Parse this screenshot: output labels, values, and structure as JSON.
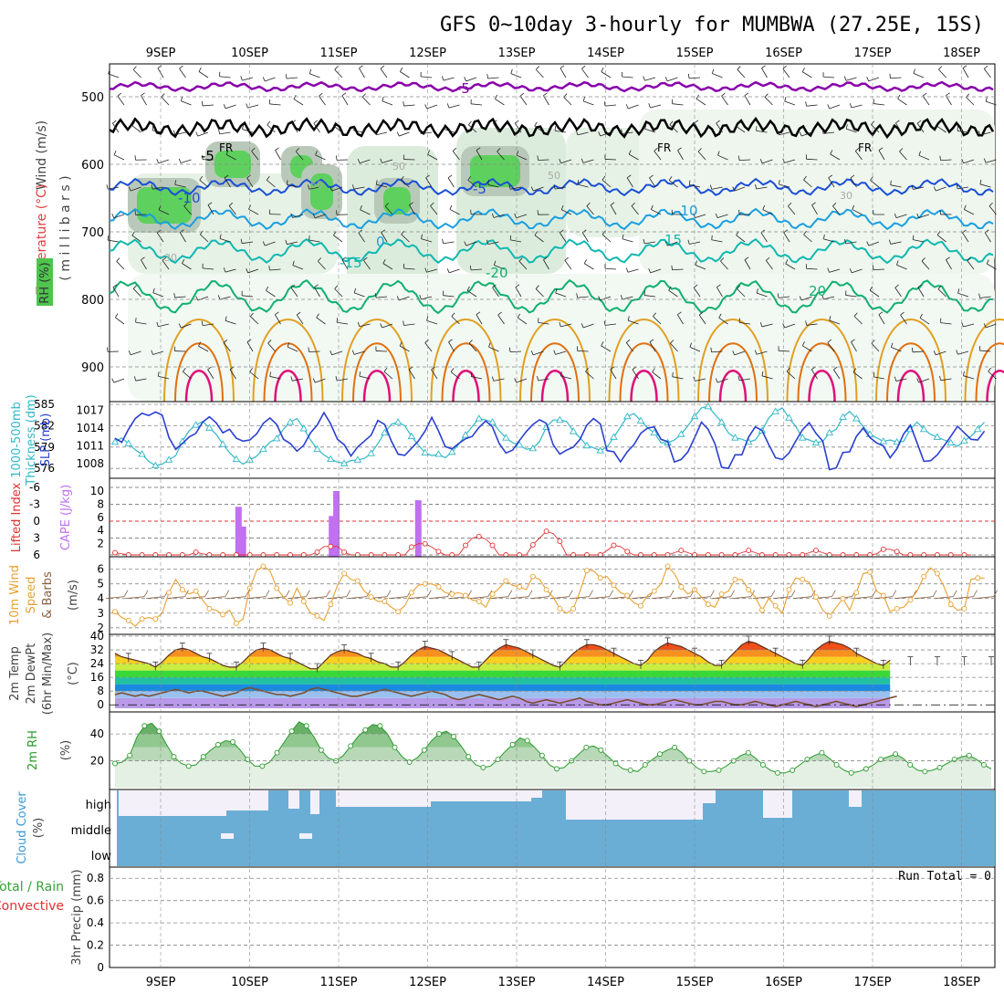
{
  "title": "GFS 0~10day 3-hourly for MUMBWA (27.25E, 15S)",
  "dates": [
    "9SEP",
    "10SEP",
    "11SEP",
    "12SEP",
    "13SEP",
    "14SEP",
    "15SEP",
    "16SEP",
    "17SEP",
    "18SEP"
  ],
  "colors": {
    "purple": "#8800aa",
    "blue": "#1a4fd6",
    "lightblue": "#1a9fe0",
    "teal": "#10b8b0",
    "green": "#10b070",
    "orange": "#e0a020",
    "darkorange": "#e07010",
    "magenta": "#e0107a",
    "rh_fill": "#5ed05e",
    "slp": "#2a3fd0",
    "thick": "#30b8c8",
    "cape": "#c070f0",
    "li": "#e03030",
    "wind": "#e8a030",
    "cloud": "#6aaed6",
    "rh2m": "#2a9a2a"
  },
  "panels": {
    "upper": {
      "labels": {
        "wind": "Wind (m/s)",
        "temp": "Temperature (°C)",
        "rh": "RH (%)",
        "axis": "( m i l l i b a r s )"
      },
      "pressure_ticks": [
        "500",
        "600",
        "700",
        "800",
        "900"
      ],
      "isotherm_labels": [
        "-5",
        "-5",
        "-10",
        "-5",
        "0",
        "-15",
        "-20",
        "-10",
        "15",
        "20"
      ],
      "freezing_labels": [
        "FR",
        "FR",
        "FR"
      ],
      "rh_labels": [
        "30",
        "50",
        "50",
        "50",
        "30"
      ]
    },
    "slp": {
      "left_label": "1000-500mb",
      "left_label2": "Thickness (dm)",
      "right_label": "SLP (mb)",
      "left_ticks": [
        "585",
        "582",
        "579",
        "576"
      ],
      "right_ticks": [
        "1017",
        "1014",
        "1011",
        "1008"
      ]
    },
    "cape": {
      "left_label": "Lifted Index",
      "right_label": "CAPE (J/kg)",
      "left_ticks": [
        "-6",
        "-3",
        "0",
        "3",
        "6"
      ],
      "right_ticks": [
        "10",
        "8",
        "6",
        "4",
        "2"
      ]
    },
    "wind10m": {
      "label1": "10m Wind",
      "label2": "Speed",
      "label3": "& Barbs",
      "unit": "(m/s)",
      "ticks": [
        "6",
        "5",
        "4",
        "3",
        "2"
      ]
    },
    "temp2m": {
      "label1": "2m Temp",
      "label2": "2m DewPt",
      "label3": "(6hr Min/Max)",
      "unit": "(°C)",
      "ticks": [
        "40",
        "32",
        "24",
        "16",
        "8",
        "0"
      ]
    },
    "rh2m": {
      "label": "2m RH",
      "unit": "(%)",
      "ticks": [
        "40",
        "20"
      ]
    },
    "cloud": {
      "label": "Cloud Cover",
      "unit": "(%)",
      "levels": [
        "high",
        "middle",
        "low"
      ]
    },
    "precip": {
      "label1": "Total / Rain",
      "label2": "Convective",
      "label3": "3hr Precip (mm)",
      "ticks": [
        "0.8",
        "0.6",
        "0.4",
        "0.2",
        "0"
      ],
      "run_total": "Run Total = 0"
    }
  },
  "chart_data": [
    {
      "type": "line",
      "title": "1000-500mb Thickness (dm)",
      "ylim": [
        575,
        585
      ],
      "series": [
        {
          "name": "1000-500mb Thickness (dm)",
          "values": [
            579.7,
            580.3,
            579.5,
            578.6,
            578.0,
            577.0,
            576.4,
            576.6,
            577.2,
            577.8,
            579.8,
            581.3,
            582.1,
            582.6,
            581.7,
            580.8,
            579.4,
            578.2,
            577.3,
            576.6,
            577.2,
            577.7,
            578.7,
            579.7,
            580.2,
            581.5,
            582.5,
            583.0,
            581.6,
            580.0,
            578.7,
            577.9,
            577.3,
            576.9,
            576.7,
            577.1,
            577.2,
            577.4,
            578.1,
            579.5,
            581.0,
            582.2,
            582.5,
            582.0,
            580.5,
            579.3,
            578.2,
            577.8,
            578.0,
            577.5,
            578.3,
            579.4,
            580.7,
            581.9,
            583.0,
            582.8,
            582.5,
            581.3,
            580.3,
            579.6,
            579.3,
            578.7,
            578.8,
            579.8,
            581.8,
            582.8,
            582.8,
            582.6,
            581.2,
            580.3,
            579.2,
            578.9,
            578.5,
            579.0,
            580.4,
            581.8,
            583.3,
            583.7,
            582.7,
            581.7,
            581.0,
            579.6,
            579.6,
            580.0,
            580.8,
            582.0,
            583.3,
            584.5,
            584.7,
            583.6,
            582.5,
            581.0,
            580.3,
            580.1,
            579.7,
            580.0,
            581.3,
            583.1,
            584.0,
            584.5,
            583.1,
            581.9,
            580.3,
            580.0,
            579.6,
            579.8,
            581.0,
            581.5,
            583.2,
            584.0,
            583.0,
            581.9,
            580.8,
            580.3,
            579.8,
            580.0,
            579.7,
            579.8,
            581.5,
            582.5,
            581.5,
            580.8,
            580.4,
            580.0,
            579.6,
            579.1,
            579.9,
            580.5,
            581.5,
            582.5
          ]
        }
      ]
    },
    {
      "type": "line",
      "title": "SLP (mb)",
      "ylim": [
        1006,
        1018
      ],
      "series": [
        {
          "name": "SLP (mb)",
          "values": [
            1012.3,
            1011.6,
            1013.8,
            1015.6,
            1016.5,
            1016.1,
            1016.7,
            1016.2,
            1012.4,
            1010.4,
            1011.4,
            1012.5,
            1013.1,
            1015.0,
            1015.9,
            1014.9,
            1013.2,
            1013.8,
            1012.3,
            1011.8,
            1012.0,
            1013.0,
            1014.8,
            1015.7,
            1014.6,
            1012.1,
            1011.4,
            1010.1,
            1011.1,
            1013.2,
            1014.5,
            1016.6,
            1014.7,
            1012.1,
            1011.2,
            1009.3,
            1010.8,
            1011.8,
            1012.8,
            1015.3,
            1014.6,
            1011.8,
            1009.6,
            1009.4,
            1010.6,
            1011.8,
            1013.5,
            1015.8,
            1013.5,
            1010.9,
            1010.5,
            1011.4,
            1012.2,
            1012.6,
            1014.1,
            1015.2,
            1014.2,
            1011.4,
            1009.8,
            1010.3,
            1011.9,
            1013.4,
            1014.6,
            1015.4,
            1014.8,
            1011.2,
            1009.6,
            1010.3,
            1010.8,
            1012.1,
            1014.5,
            1015.6,
            1014.7,
            1010.2,
            1010.0,
            1008.3,
            1010.0,
            1011.2,
            1013.1,
            1014.0,
            1014.2,
            1012.1,
            1011.7,
            1008.3,
            1008.7,
            1010.0,
            1012.4,
            1015.0,
            1013.8,
            1011.4,
            1007.4,
            1007.2,
            1009.5,
            1009.5,
            1012.5,
            1014.2,
            1013.6,
            1011.2,
            1009.0,
            1008.7,
            1009.8,
            1011.8,
            1013.7,
            1014.9,
            1013.1,
            1011.8,
            1007.0,
            1007.3,
            1009.9,
            1010.0,
            1012.6,
            1014.0,
            1012.4,
            1011.5,
            1011.0,
            1009.0,
            1010.5,
            1013.0,
            1014.5,
            1011.5,
            1008.4,
            1008.5,
            1009.5,
            1011.0,
            1012.6,
            1014.3,
            1013.2,
            1012.1,
            1012.0,
            1013.5
          ]
        }
      ]
    },
    {
      "type": "bar",
      "title": "CAPE (J/kg)",
      "x_days": [
        0.9,
        0.95,
        1.95,
        2.0,
        2.92
      ],
      "values": [
        7.6,
        4.6,
        6.2,
        10.0,
        8.6
      ],
      "ylim": [
        0,
        10
      ]
    },
    {
      "type": "line",
      "title": "Lifted Index",
      "ylim": [
        -6,
        6
      ],
      "note_range": "values between about 1 and 6",
      "series": [
        {
          "name": "Lifted Index",
          "values": [
            5.6,
            5.8,
            6,
            6,
            6,
            6,
            6,
            6,
            6,
            6,
            6,
            6,
            5.5,
            5.8,
            6,
            6,
            6,
            6,
            6,
            6,
            6,
            6,
            6,
            6,
            6,
            6,
            6,
            6,
            6,
            6,
            5.5,
            4.5,
            4.5,
            4.5,
            5.5,
            6,
            6,
            6,
            6,
            6,
            6,
            6,
            6,
            6,
            4.6,
            4.0,
            4.0,
            4.6,
            5.4,
            6,
            6,
            6,
            4.3,
            3.0,
            2.7,
            3.2,
            4.3,
            6,
            6,
            6,
            6,
            6,
            4.2,
            3.0,
            1.8,
            2.2,
            3.6,
            6,
            6,
            6,
            6,
            6,
            6,
            5.2,
            4.3,
            4.5,
            5.4,
            6,
            6,
            6,
            6,
            6,
            6,
            5.6,
            5.2,
            5.6,
            6,
            6,
            6,
            6,
            6,
            6,
            6,
            5.6,
            5.2,
            5.6,
            6,
            6,
            6,
            6,
            6,
            6,
            6,
            5.6,
            5.2,
            5.6,
            6,
            6,
            6,
            6,
            6,
            6,
            6,
            5.8,
            5.0,
            5.0,
            5.4,
            6,
            6,
            6,
            6,
            6,
            6,
            6,
            6,
            6,
            6,
            6
          ]
        }
      ]
    },
    {
      "type": "line",
      "title": "10m Wind Speed (m/s)",
      "ylim": [
        1.8,
        6.6
      ],
      "series": [
        {
          "name": "10m Wind Speed",
          "values": [
            3.1,
            2.7,
            2.5,
            2.1,
            2.6,
            2.7,
            2.6,
            3.0,
            4.4,
            5.3,
            4.6,
            4.3,
            4.5,
            3.9,
            3.3,
            3.2,
            2.9,
            3.2,
            2.3,
            2.6,
            4.7,
            5.9,
            6.2,
            5.9,
            4.7,
            4.1,
            3.7,
            4.7,
            3.8,
            3.0,
            2.8,
            2.5,
            3.6,
            4.9,
            5.7,
            5.3,
            5.2,
            4.5,
            4.1,
            3.8,
            3.8,
            3.4,
            3.1,
            3.5,
            4.4,
            4.9,
            5.0,
            5.0,
            4.8,
            4.4,
            4.3,
            4.4,
            4.2,
            3.9,
            3.8,
            3.4,
            4.3,
            4.7,
            5.2,
            4.9,
            4.8,
            4.6,
            5.5,
            5.3,
            4.6,
            4.1,
            3.3,
            3.0,
            3.3,
            4.5,
            5.9,
            5.9,
            5.4,
            5.5,
            4.9,
            4.4,
            4.2,
            3.7,
            3.5,
            4.2,
            4.5,
            5.0,
            6.2,
            5.7,
            4.8,
            4.3,
            4.6,
            4.1,
            3.6,
            3.4,
            4.3,
            4.5,
            5.3,
            5.3,
            4.6,
            4.1,
            3.2,
            4.0,
            3.5,
            3.0,
            4.6,
            5.4,
            5.3,
            5.1,
            4.1,
            3.2,
            2.8,
            3.4,
            4.0,
            3.2,
            4.4,
            5.7,
            5.8,
            4.5,
            4.2,
            3.1,
            3.3,
            3.4,
            3.9,
            4.5,
            5.5,
            6.1,
            5.7,
            4.8,
            3.6,
            3.2,
            3.3,
            5.3,
            5.4,
            5.4
          ]
        }
      ]
    },
    {
      "type": "area",
      "title": "2m Temp / DewPt (°C)",
      "ylim": [
        -2,
        40
      ],
      "series": [
        {
          "name": "2m Temp",
          "values": [
            30,
            28,
            27,
            26,
            25,
            24,
            22,
            25,
            29,
            32,
            33,
            32,
            30,
            28,
            27,
            25,
            23,
            22,
            22,
            25,
            29,
            32,
            33,
            32,
            30,
            28,
            27,
            25,
            23,
            21,
            21,
            25,
            29,
            31,
            32,
            31,
            30,
            28,
            27,
            25,
            24,
            22,
            22,
            25,
            29,
            32,
            34,
            33,
            32,
            30,
            28,
            26,
            24,
            22,
            22,
            26,
            30,
            33,
            35,
            34,
            33,
            31,
            29,
            27,
            25,
            23,
            22,
            26,
            30,
            33,
            35,
            35,
            34,
            32,
            30,
            28,
            26,
            24,
            23,
            26,
            31,
            34,
            36,
            35,
            34,
            32,
            30,
            28,
            25,
            23,
            23,
            27,
            31,
            35,
            37,
            36,
            34,
            32,
            30,
            28,
            26,
            24,
            23,
            27,
            32,
            35,
            37,
            36,
            35,
            33,
            30,
            28,
            26,
            24,
            23,
            26
          ]
        },
        {
          "name": "2m DewPt",
          "values": [
            6,
            7,
            6,
            5,
            6,
            5,
            6,
            7,
            8,
            9,
            8,
            7,
            8,
            8,
            7,
            6,
            5,
            6,
            7,
            9,
            10,
            9,
            8,
            7,
            6,
            6,
            5,
            6,
            7,
            9,
            10,
            9,
            8,
            7,
            6,
            5,
            5,
            6,
            7,
            8,
            9,
            8,
            7,
            6,
            5,
            6,
            7,
            8,
            7,
            6,
            4,
            3,
            4,
            5,
            6,
            5,
            4,
            3,
            4,
            5,
            4,
            2,
            1,
            2,
            3,
            2,
            1,
            2,
            3,
            4,
            2,
            1,
            0,
            0,
            1,
            2,
            3,
            2,
            1,
            0,
            0,
            1,
            2,
            3,
            2,
            1,
            0,
            0,
            1,
            2,
            2,
            1,
            0,
            0,
            1,
            2,
            1,
            0,
            -1,
            0,
            1,
            2,
            1,
            0,
            -1,
            0,
            1,
            2,
            1,
            0,
            -1,
            0,
            1,
            2,
            3,
            4,
            5
          ]
        }
      ]
    },
    {
      "type": "area",
      "title": "2m RH (%)",
      "ylim": [
        0,
        55
      ],
      "series": [
        {
          "name": "2m RH",
          "values": [
            18,
            19,
            24,
            38,
            46,
            48,
            42,
            32,
            23,
            18,
            16,
            17,
            23,
            28,
            32,
            35,
            34,
            28,
            21,
            16,
            16,
            19,
            26,
            34,
            42,
            49,
            46,
            38,
            28,
            22,
            20,
            24,
            31,
            38,
            43,
            47,
            46,
            40,
            30,
            23,
            19,
            22,
            28,
            35,
            40,
            42,
            38,
            31,
            23,
            17,
            15,
            16,
            21,
            27,
            32,
            37,
            35,
            30,
            24,
            17,
            14,
            15,
            20,
            25,
            30,
            31,
            28,
            23,
            18,
            14,
            13,
            12,
            17,
            21,
            25,
            28,
            30,
            26,
            20,
            15,
            12,
            12,
            13,
            16,
            20,
            24,
            26,
            22,
            17,
            13,
            11,
            11,
            13,
            17,
            21,
            24,
            26,
            22,
            17,
            13,
            11,
            12,
            14,
            17,
            21,
            23,
            25,
            22,
            17,
            13,
            12,
            13,
            15,
            18,
            21,
            23,
            24,
            21,
            17,
            14
          ]
        }
      ]
    },
    {
      "type": "bar",
      "title": "3hr Precip (mm)",
      "values": [
        0
      ],
      "ylim": [
        0,
        0.9
      ]
    }
  ]
}
